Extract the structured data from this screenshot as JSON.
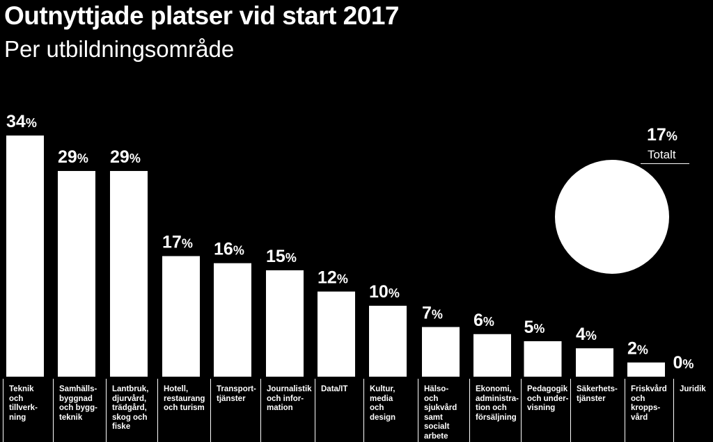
{
  "chart_data": {
    "type": "bar",
    "title": "Outnyttjade platser vid start 2017",
    "subtitle": "Per utbildningsområde",
    "unit": "%",
    "categories": [
      "Teknik och tillverkning",
      "Samhällsbyggnad och byggteknik",
      "Lantbruk, djurvård, trädgård, skog och fiske",
      "Hotell, restaurang och turism",
      "Transporttjänster",
      "Journalistik och information",
      "Data/IT",
      "Kultur, media och design",
      "Hälso- och sjukvård samt socialt arbete",
      "Ekonomi, administration och försäljning",
      "Pedagogik och undervisning",
      "Säkerhetstjänster",
      "Friskvård och kroppsvård",
      "Juridik"
    ],
    "category_lines": [
      [
        "Teknik",
        "och",
        "tillverk-",
        "ning"
      ],
      [
        "Samhälls-",
        "byggnad",
        "och bygg-",
        "teknik"
      ],
      [
        "Lantbruk,",
        "djurvård,",
        "trädgård,",
        "skog och",
        "fiske"
      ],
      [
        "Hotell,",
        "restaurang",
        "och turism"
      ],
      [
        "Transport-",
        "tjänster"
      ],
      [
        "Journalistik",
        "och infor-",
        "mation"
      ],
      [
        "Data/IT"
      ],
      [
        "Kultur,",
        "media",
        "och",
        "design"
      ],
      [
        "Hälso-",
        "och",
        "sjukvård",
        "samt",
        "socialt",
        "arbete"
      ],
      [
        "Ekonomi,",
        "administra-",
        "tion och",
        "försäljning"
      ],
      [
        "Pedagogik",
        "och under-",
        "visning"
      ],
      [
        "Säkerhets-",
        "tjänster"
      ],
      [
        "Friskvård",
        "och",
        "kropps-",
        "vård"
      ],
      [
        "Juridik"
      ]
    ],
    "values": [
      34,
      29,
      29,
      17,
      16,
      15,
      12,
      10,
      7,
      6,
      5,
      4,
      2,
      0
    ],
    "ylim": [
      0,
      34
    ],
    "grid": false,
    "legend": "none",
    "bar_color": "#ffffff",
    "background_color": "#000000",
    "total": {
      "value": 17,
      "label": "Totalt"
    }
  }
}
